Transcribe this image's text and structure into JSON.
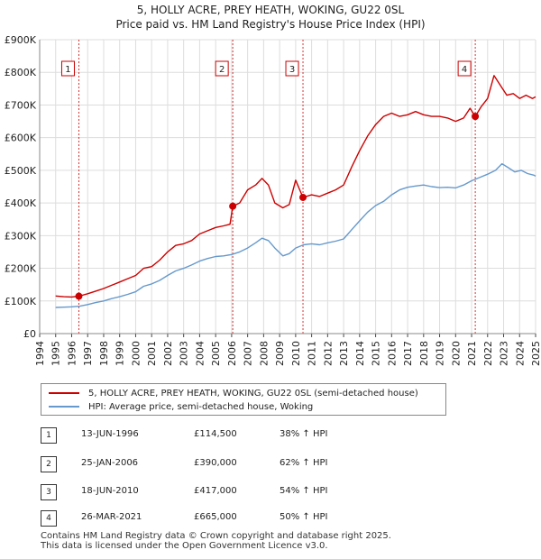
{
  "title_line1": "5, HOLLY ACRE, PREY HEATH, WOKING, GU22 0SL",
  "title_line2": "Price paid vs. HM Land Registry's House Price Index (HPI)",
  "chart_data": {
    "type": "line",
    "title": "5, HOLLY ACRE, PREY HEATH, WOKING, GU22 0SL - Price paid vs. HM Land Registry's House Price Index (HPI)",
    "xlabel": "",
    "ylabel": "",
    "xlim": [
      1994,
      2025
    ],
    "ylim": [
      0,
      900000
    ],
    "grid": true,
    "y_ticks": [
      {
        "value": 0,
        "label": "£0"
      },
      {
        "value": 100000,
        "label": "£100K"
      },
      {
        "value": 200000,
        "label": "£200K"
      },
      {
        "value": 300000,
        "label": "£300K"
      },
      {
        "value": 400000,
        "label": "£400K"
      },
      {
        "value": 500000,
        "label": "£500K"
      },
      {
        "value": 600000,
        "label": "£600K"
      },
      {
        "value": 700000,
        "label": "£700K"
      },
      {
        "value": 800000,
        "label": "£800K"
      },
      {
        "value": 900000,
        "label": "£900K"
      }
    ],
    "x_ticks": [
      "1994",
      "1995",
      "1996",
      "1997",
      "1998",
      "1999",
      "2000",
      "2001",
      "2002",
      "2003",
      "2004",
      "2005",
      "2006",
      "2007",
      "2008",
      "2009",
      "2010",
      "2011",
      "2012",
      "2013",
      "2014",
      "2015",
      "2016",
      "2017",
      "2018",
      "2019",
      "2020",
      "2021",
      "2022",
      "2023",
      "2024",
      "2025"
    ],
    "series": [
      {
        "name": "5, HOLLY ACRE, PREY HEATH, WOKING, GU22 0SL (semi-detached house)",
        "color": "#cc0000",
        "x": [
          1995.0,
          1995.5,
          1996.0,
          1996.45,
          1997.0,
          1997.5,
          1998.0,
          1998.5,
          1999.0,
          1999.5,
          2000.0,
          2000.5,
          2001.0,
          2001.5,
          2002.0,
          2002.5,
          2003.0,
          2003.5,
          2004.0,
          2004.5,
          2005.0,
          2005.5,
          2005.9,
          2006.07,
          2006.5,
          2007.0,
          2007.5,
          2007.9,
          2008.3,
          2008.7,
          2009.2,
          2009.6,
          2010.0,
          2010.46,
          2011.0,
          2011.5,
          2012.0,
          2012.5,
          2013.0,
          2013.5,
          2014.0,
          2014.5,
          2015.0,
          2015.5,
          2016.0,
          2016.5,
          2017.0,
          2017.5,
          2018.0,
          2018.5,
          2019.0,
          2019.5,
          2020.0,
          2020.5,
          2020.9,
          2021.23,
          2021.6,
          2022.0,
          2022.4,
          2022.8,
          2023.2,
          2023.6,
          2024.0,
          2024.4,
          2024.8,
          2025.0
        ],
        "values": [
          115000,
          113000,
          112000,
          114500,
          122000,
          130000,
          138000,
          148000,
          158000,
          168000,
          178000,
          200000,
          205000,
          225000,
          250000,
          270000,
          275000,
          285000,
          305000,
          315000,
          325000,
          330000,
          335000,
          390000,
          400000,
          440000,
          455000,
          475000,
          455000,
          400000,
          385000,
          395000,
          470000,
          417000,
          425000,
          420000,
          430000,
          440000,
          455000,
          510000,
          560000,
          605000,
          640000,
          665000,
          675000,
          665000,
          670000,
          680000,
          670000,
          665000,
          665000,
          660000,
          650000,
          660000,
          690000,
          665000,
          695000,
          720000,
          790000,
          760000,
          730000,
          735000,
          720000,
          730000,
          720000,
          725000
        ]
      },
      {
        "name": "HPI: Average price, semi-detached house, Woking",
        "color": "#6699cc",
        "x": [
          1995.0,
          1995.5,
          1996.0,
          1996.5,
          1997.0,
          1997.5,
          1998.0,
          1998.5,
          1999.0,
          1999.5,
          2000.0,
          2000.5,
          2001.0,
          2001.5,
          2002.0,
          2002.5,
          2003.0,
          2003.5,
          2004.0,
          2004.5,
          2005.0,
          2005.5,
          2006.0,
          2006.5,
          2007.0,
          2007.5,
          2007.9,
          2008.3,
          2008.7,
          2009.2,
          2009.6,
          2010.0,
          2010.5,
          2011.0,
          2011.5,
          2012.0,
          2012.5,
          2013.0,
          2013.5,
          2014.0,
          2014.5,
          2015.0,
          2015.5,
          2016.0,
          2016.5,
          2017.0,
          2017.5,
          2018.0,
          2018.5,
          2019.0,
          2019.5,
          2020.0,
          2020.5,
          2021.0,
          2021.5,
          2022.0,
          2022.5,
          2022.9,
          2023.3,
          2023.7,
          2024.1,
          2024.5,
          2024.9,
          2025.0
        ],
        "values": [
          80000,
          81000,
          82000,
          84000,
          89000,
          95000,
          100000,
          107000,
          113000,
          120000,
          128000,
          145000,
          152000,
          163000,
          178000,
          192000,
          200000,
          210000,
          222000,
          230000,
          236000,
          238000,
          242000,
          250000,
          262000,
          278000,
          292000,
          285000,
          262000,
          238000,
          245000,
          262000,
          272000,
          275000,
          272000,
          278000,
          283000,
          290000,
          318000,
          345000,
          372000,
          392000,
          405000,
          425000,
          440000,
          448000,
          452000,
          455000,
          450000,
          447000,
          448000,
          446000,
          455000,
          468000,
          478000,
          488000,
          500000,
          520000,
          508000,
          495000,
          500000,
          490000,
          485000,
          482000
        ]
      }
    ],
    "sales": [
      {
        "num": "1",
        "x": 1996.45,
        "price": 114500
      },
      {
        "num": "2",
        "x": 2006.07,
        "price": 390000
      },
      {
        "num": "3",
        "x": 2010.46,
        "price": 417000
      },
      {
        "num": "4",
        "x": 2021.23,
        "price": 665000
      }
    ]
  },
  "legend": {
    "property": "5, HOLLY ACRE, PREY HEATH, WOKING, GU22 0SL (semi-detached house)",
    "hpi": "HPI: Average price, semi-detached house, Woking"
  },
  "sales_table": [
    {
      "num": "1",
      "date": "13-JUN-1996",
      "price": "£114,500",
      "hpi": "38% ↑ HPI"
    },
    {
      "num": "2",
      "date": "25-JAN-2006",
      "price": "£390,000",
      "hpi": "62% ↑ HPI"
    },
    {
      "num": "3",
      "date": "18-JUN-2010",
      "price": "£417,000",
      "hpi": "54% ↑ HPI"
    },
    {
      "num": "4",
      "date": "26-MAR-2021",
      "price": "£665,000",
      "hpi": "50% ↑ HPI"
    }
  ],
  "footer_line1": "Contains HM Land Registry data © Crown copyright and database right 2025.",
  "footer_line2": "This data is licensed under the Open Government Licence v3.0."
}
